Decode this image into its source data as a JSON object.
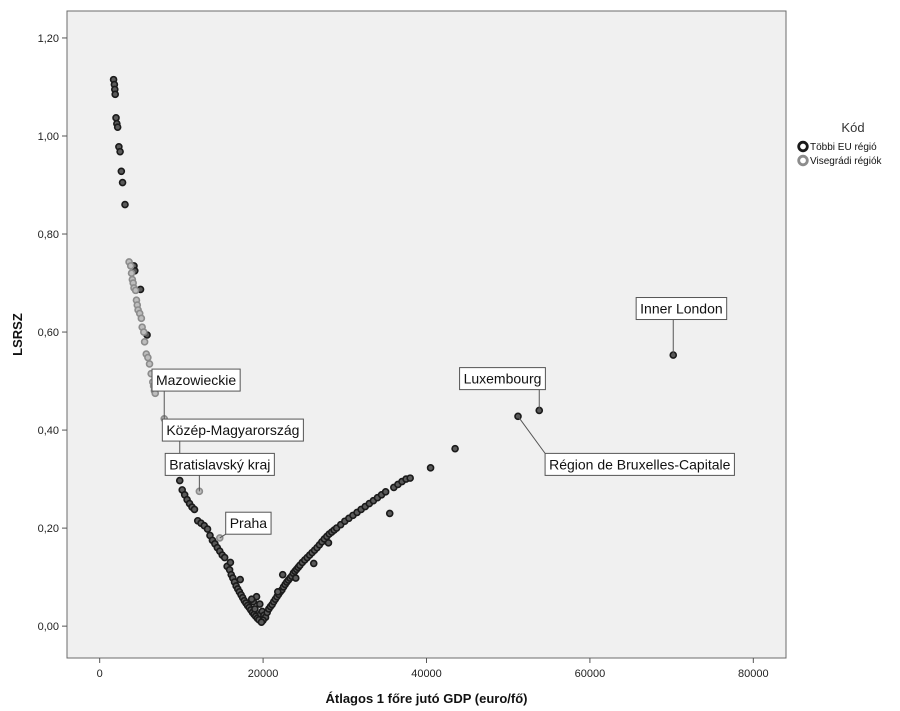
{
  "chart_data": {
    "type": "scatter",
    "xlabel": "Átlagos 1 főre jutó GDP (euro/fő)",
    "ylabel": "LSRSZ",
    "xlim": [
      -4000,
      84000
    ],
    "ylim": [
      -0.065,
      1.255
    ],
    "x_ticks": [
      {
        "value": 0,
        "label": "0"
      },
      {
        "value": 20000,
        "label": "20000"
      },
      {
        "value": 40000,
        "label": "40000"
      },
      {
        "value": 60000,
        "label": "60000"
      },
      {
        "value": 80000,
        "label": "80000"
      }
    ],
    "y_ticks": [
      {
        "value": 0.0,
        "label": "0,00"
      },
      {
        "value": 0.2,
        "label": "0,20"
      },
      {
        "value": 0.4,
        "label": "0,40"
      },
      {
        "value": 0.6,
        "label": "0,60"
      },
      {
        "value": 0.8,
        "label": "0,80"
      },
      {
        "value": 1.0,
        "label": "1,00"
      },
      {
        "value": 1.2,
        "label": "1,20"
      }
    ],
    "grid": false,
    "legend": {
      "title": "Kód",
      "placement": "right",
      "entries": [
        {
          "label": "Többi EU régió",
          "color": "#1a1a1a"
        },
        {
          "label": "Visegrádi régiók",
          "color": "#8c8c8c"
        }
      ]
    },
    "series": [
      {
        "name": "Többi EU régió",
        "color": "#1a1a1a",
        "points": [
          [
            1700,
            1.115
          ],
          [
            1800,
            1.105
          ],
          [
            1850,
            1.095
          ],
          [
            1900,
            1.085
          ],
          [
            2000,
            1.037
          ],
          [
            2100,
            1.025
          ],
          [
            2200,
            1.018
          ],
          [
            2350,
            0.978
          ],
          [
            2500,
            0.968
          ],
          [
            2650,
            0.928
          ],
          [
            2800,
            0.905
          ],
          [
            3100,
            0.86
          ],
          [
            4200,
            0.735
          ],
          [
            4300,
            0.725
          ],
          [
            5000,
            0.687
          ],
          [
            5800,
            0.594
          ],
          [
            9800,
            0.297
          ],
          [
            10100,
            0.278
          ],
          [
            10400,
            0.268
          ],
          [
            10700,
            0.258
          ],
          [
            11000,
            0.25
          ],
          [
            11300,
            0.243
          ],
          [
            11600,
            0.238
          ],
          [
            12000,
            0.215
          ],
          [
            12400,
            0.21
          ],
          [
            12800,
            0.205
          ],
          [
            13200,
            0.198
          ],
          [
            13500,
            0.185
          ],
          [
            13800,
            0.175
          ],
          [
            14100,
            0.168
          ],
          [
            14400,
            0.16
          ],
          [
            14700,
            0.153
          ],
          [
            15000,
            0.145
          ],
          [
            15300,
            0.14
          ],
          [
            15600,
            0.122
          ],
          [
            15900,
            0.115
          ],
          [
            16100,
            0.105
          ],
          [
            16300,
            0.098
          ],
          [
            16500,
            0.09
          ],
          [
            16700,
            0.082
          ],
          [
            16900,
            0.076
          ],
          [
            17100,
            0.07
          ],
          [
            17300,
            0.064
          ],
          [
            17500,
            0.058
          ],
          [
            17700,
            0.052
          ],
          [
            17900,
            0.047
          ],
          [
            18100,
            0.042
          ],
          [
            18300,
            0.038
          ],
          [
            18500,
            0.033
          ],
          [
            18700,
            0.028
          ],
          [
            18900,
            0.024
          ],
          [
            19100,
            0.02
          ],
          [
            19300,
            0.016
          ],
          [
            19500,
            0.013
          ],
          [
            19600,
            0.045
          ],
          [
            19700,
            0.025
          ],
          [
            19900,
            0.03
          ],
          [
            20100,
            0.022
          ],
          [
            20300,
            0.018
          ],
          [
            20500,
            0.028
          ],
          [
            20700,
            0.035
          ],
          [
            20900,
            0.04
          ],
          [
            21100,
            0.044
          ],
          [
            21300,
            0.05
          ],
          [
            21500,
            0.055
          ],
          [
            21700,
            0.06
          ],
          [
            21900,
            0.065
          ],
          [
            22100,
            0.07
          ],
          [
            22300,
            0.074
          ],
          [
            22500,
            0.08
          ],
          [
            22700,
            0.085
          ],
          [
            22900,
            0.09
          ],
          [
            23100,
            0.094
          ],
          [
            23300,
            0.098
          ],
          [
            23500,
            0.102
          ],
          [
            23700,
            0.108
          ],
          [
            23900,
            0.112
          ],
          [
            24100,
            0.116
          ],
          [
            24300,
            0.12
          ],
          [
            24500,
            0.124
          ],
          [
            24800,
            0.13
          ],
          [
            25100,
            0.135
          ],
          [
            25400,
            0.14
          ],
          [
            25700,
            0.145
          ],
          [
            26000,
            0.15
          ],
          [
            26300,
            0.155
          ],
          [
            26600,
            0.16
          ],
          [
            26900,
            0.166
          ],
          [
            27200,
            0.172
          ],
          [
            27500,
            0.178
          ],
          [
            27800,
            0.183
          ],
          [
            28100,
            0.188
          ],
          [
            28400,
            0.192
          ],
          [
            28700,
            0.196
          ],
          [
            29000,
            0.2
          ],
          [
            29500,
            0.207
          ],
          [
            30000,
            0.214
          ],
          [
            30500,
            0.22
          ],
          [
            31000,
            0.226
          ],
          [
            31500,
            0.232
          ],
          [
            32000,
            0.238
          ],
          [
            32500,
            0.244
          ],
          [
            33000,
            0.25
          ],
          [
            33500,
            0.256
          ],
          [
            34000,
            0.262
          ],
          [
            34500,
            0.268
          ],
          [
            35000,
            0.274
          ],
          [
            35500,
            0.23
          ],
          [
            36000,
            0.283
          ],
          [
            36500,
            0.289
          ],
          [
            37000,
            0.295
          ],
          [
            37500,
            0.3
          ],
          [
            38000,
            0.302
          ],
          [
            40500,
            0.323
          ],
          [
            43500,
            0.362
          ],
          [
            51200,
            0.428
          ],
          [
            53800,
            0.44
          ],
          [
            70200,
            0.553
          ],
          [
            19200,
            0.06
          ],
          [
            18800,
            0.05
          ],
          [
            19000,
            0.035
          ],
          [
            20000,
            0.012
          ],
          [
            19800,
            0.008
          ],
          [
            18600,
            0.055
          ],
          [
            17200,
            0.095
          ],
          [
            16000,
            0.13
          ],
          [
            21800,
            0.07
          ],
          [
            24000,
            0.098
          ],
          [
            22400,
            0.105
          ],
          [
            26200,
            0.128
          ],
          [
            28000,
            0.17
          ]
        ]
      },
      {
        "name": "Visegrádi régiók",
        "color": "#8c8c8c",
        "points": [
          [
            3600,
            0.743
          ],
          [
            3800,
            0.735
          ],
          [
            3900,
            0.72
          ],
          [
            4000,
            0.707
          ],
          [
            4100,
            0.7
          ],
          [
            4200,
            0.69
          ],
          [
            4400,
            0.685
          ],
          [
            4500,
            0.665
          ],
          [
            4600,
            0.655
          ],
          [
            4700,
            0.645
          ],
          [
            4900,
            0.638
          ],
          [
            5100,
            0.628
          ],
          [
            5200,
            0.61
          ],
          [
            5400,
            0.6
          ],
          [
            5500,
            0.58
          ],
          [
            5700,
            0.555
          ],
          [
            5900,
            0.548
          ],
          [
            6100,
            0.535
          ],
          [
            6300,
            0.515
          ],
          [
            6500,
            0.498
          ],
          [
            6600,
            0.49
          ],
          [
            6700,
            0.48
          ],
          [
            6800,
            0.475
          ],
          [
            7900,
            0.423
          ],
          [
            9800,
            0.338
          ],
          [
            12200,
            0.275
          ],
          [
            14700,
            0.18
          ]
        ]
      }
    ],
    "annotations": [
      {
        "text": "Mazowieckie",
        "x": 7900,
        "y": 0.423,
        "box_x": 11800,
        "box_y": 0.502
      },
      {
        "text": "Közép-Magyarország",
        "x": 9800,
        "y": 0.338,
        "box_x": 16300,
        "box_y": 0.4
      },
      {
        "text": "Bratislavský kraj",
        "x": 12200,
        "y": 0.275,
        "box_x": 14700,
        "box_y": 0.33
      },
      {
        "text": "Praha",
        "x": 14700,
        "y": 0.18,
        "box_x": 18200,
        "box_y": 0.21
      },
      {
        "text": "Inner London",
        "x": 70200,
        "y": 0.553,
        "box_x": 71200,
        "box_y": 0.648
      },
      {
        "text": "Luxembourg",
        "x": 53800,
        "y": 0.44,
        "box_x": 49300,
        "box_y": 0.505
      },
      {
        "text": "Région de Bruxelles-Capitale",
        "x": 51200,
        "y": 0.428,
        "box_x": 66100,
        "box_y": 0.33
      }
    ]
  }
}
